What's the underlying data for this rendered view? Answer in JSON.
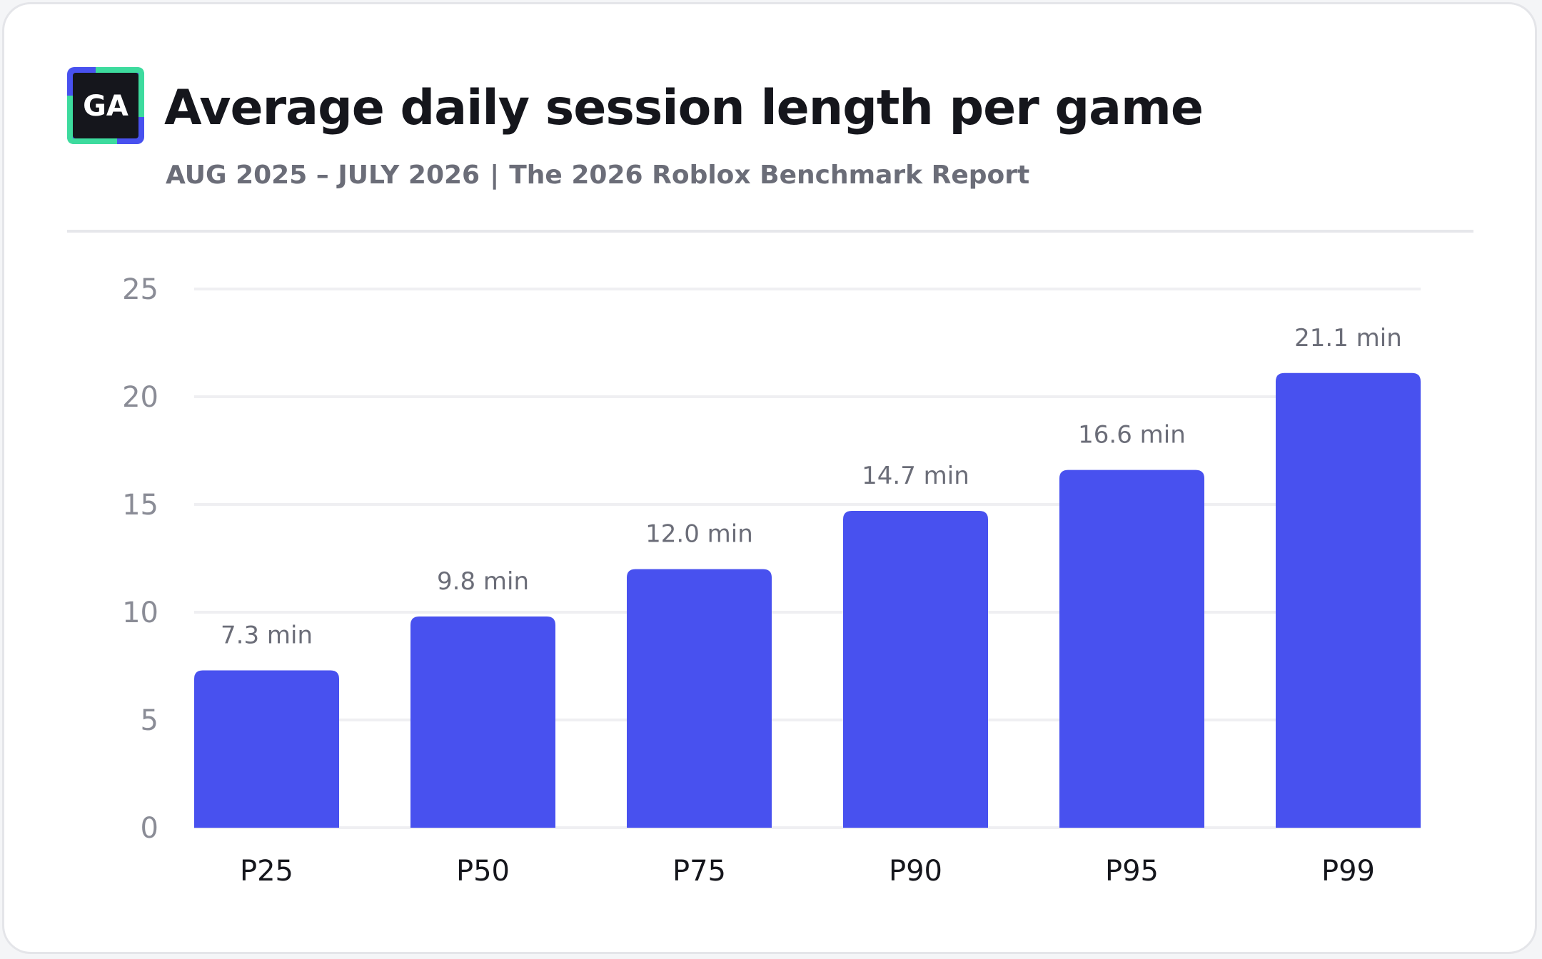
{
  "header": {
    "logo_text": "GA",
    "title": "Average daily session length per game",
    "period": "AUG 2025 – JULY 2026",
    "separator": "|",
    "report": "The 2026 Roblox Benchmark Report"
  },
  "colors": {
    "bar": "#4851ef",
    "logo_dark": "#15161c",
    "logo_accent_green": "#3ddb9e",
    "logo_accent_blue": "#4851ef",
    "grid": "#efeff2"
  },
  "icons": {
    "logo": "ga-logo-icon"
  },
  "chart_data": {
    "type": "bar",
    "categories": [
      "P25",
      "P50",
      "P75",
      "P90",
      "P95",
      "P99"
    ],
    "values": [
      7.3,
      9.8,
      12.0,
      14.7,
      16.6,
      21.1
    ],
    "value_labels": [
      "7.3 min",
      "9.8 min",
      "12.0 min",
      "14.7 min",
      "16.6 min",
      "21.1 min"
    ],
    "yticks": [
      "0",
      "5",
      "10",
      "15",
      "20",
      "25"
    ],
    "ylim": [
      0,
      25
    ],
    "grid": true,
    "legend": "none",
    "xlabel": "",
    "ylabel": ""
  }
}
